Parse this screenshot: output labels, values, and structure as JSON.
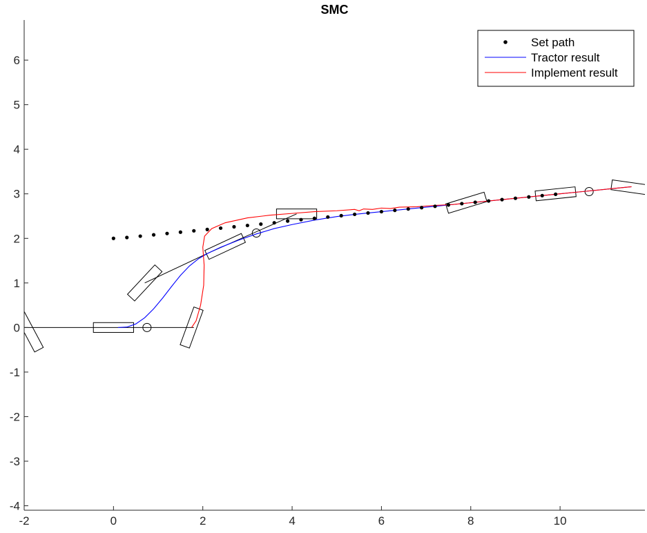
{
  "chart_data": {
    "type": "line",
    "title": "SMC",
    "xlabel": "",
    "ylabel": "",
    "xlim": [
      -2,
      11.9
    ],
    "ylim": [
      -4.1,
      6.9
    ],
    "grid": false,
    "legend_position": "top-right",
    "x_ticks": [
      "-2",
      "0",
      "2",
      "4",
      "6",
      "8",
      "10"
    ],
    "x_tick_values": [
      -2,
      0,
      2,
      4,
      6,
      8,
      10
    ],
    "y_ticks": [
      "-4",
      "-3",
      "-2",
      "-1",
      "0",
      "1",
      "2",
      "3",
      "4",
      "5",
      "6"
    ],
    "y_tick_values": [
      -4,
      -3,
      -2,
      -1,
      0,
      1,
      2,
      3,
      4,
      5,
      6
    ],
    "legend": [
      {
        "label": "Set path",
        "style": "marker",
        "color": "#000000"
      },
      {
        "label": "Tractor result",
        "style": "line",
        "color": "#0000ff"
      },
      {
        "label": "Implement result",
        "style": "line",
        "color": "#ff0000"
      }
    ],
    "series": [
      {
        "name": "Set path",
        "style": "marker",
        "color": "#000000",
        "points": [
          [
            0,
            2
          ],
          [
            0.3,
            2.02
          ],
          [
            0.6,
            2.05
          ],
          [
            0.9,
            2.08
          ],
          [
            1.2,
            2.11
          ],
          [
            1.5,
            2.14
          ],
          [
            1.8,
            2.17
          ],
          [
            2.1,
            2.2
          ],
          [
            2.4,
            2.23
          ],
          [
            2.7,
            2.26
          ],
          [
            3.0,
            2.29
          ],
          [
            3.3,
            2.32
          ],
          [
            3.6,
            2.35
          ],
          [
            3.9,
            2.39
          ],
          [
            4.2,
            2.42
          ],
          [
            4.5,
            2.45
          ],
          [
            4.8,
            2.48
          ],
          [
            5.1,
            2.51
          ],
          [
            5.4,
            2.54
          ],
          [
            5.7,
            2.57
          ],
          [
            6.0,
            2.6
          ],
          [
            6.3,
            2.63
          ],
          [
            6.6,
            2.66
          ],
          [
            6.9,
            2.69
          ],
          [
            7.2,
            2.72
          ],
          [
            7.5,
            2.75
          ],
          [
            7.8,
            2.78
          ],
          [
            8.1,
            2.81
          ],
          [
            8.4,
            2.84
          ],
          [
            8.7,
            2.87
          ],
          [
            9.0,
            2.9
          ],
          [
            9.3,
            2.93
          ],
          [
            9.6,
            2.96
          ],
          [
            9.9,
            2.99
          ]
        ]
      },
      {
        "name": "Tractor result",
        "style": "line",
        "color": "#0000ff",
        "points": [
          [
            0.1,
            0
          ],
          [
            0.3,
            0.01
          ],
          [
            0.5,
            0.08
          ],
          [
            0.7,
            0.22
          ],
          [
            0.9,
            0.42
          ],
          [
            1.1,
            0.66
          ],
          [
            1.3,
            0.92
          ],
          [
            1.5,
            1.17
          ],
          [
            1.7,
            1.38
          ],
          [
            1.9,
            1.54
          ],
          [
            2.1,
            1.66
          ],
          [
            2.4,
            1.8
          ],
          [
            2.8,
            1.96
          ],
          [
            3.2,
            2.1
          ],
          [
            3.6,
            2.22
          ],
          [
            4.0,
            2.31
          ],
          [
            4.5,
            2.41
          ],
          [
            5.0,
            2.49
          ],
          [
            5.5,
            2.55
          ],
          [
            6.0,
            2.6
          ],
          [
            6.5,
            2.65
          ],
          [
            7.0,
            2.7
          ],
          [
            7.5,
            2.75
          ],
          [
            8.0,
            2.8
          ],
          [
            8.5,
            2.85
          ],
          [
            9.0,
            2.9
          ],
          [
            9.5,
            2.95
          ],
          [
            10.0,
            3.0
          ],
          [
            10.5,
            3.05
          ],
          [
            11.0,
            3.1
          ],
          [
            11.6,
            3.16
          ]
        ]
      },
      {
        "name": "Implement result",
        "style": "line",
        "color": "#ff0000",
        "points": [
          [
            1.75,
            0
          ],
          [
            1.85,
            0.15
          ],
          [
            1.95,
            0.5
          ],
          [
            2.02,
            0.95
          ],
          [
            2.03,
            1.4
          ],
          [
            2.0,
            1.8
          ],
          [
            2.04,
            2.05
          ],
          [
            2.2,
            2.22
          ],
          [
            2.5,
            2.35
          ],
          [
            3.0,
            2.46
          ],
          [
            3.5,
            2.52
          ],
          [
            4.0,
            2.56
          ],
          [
            4.5,
            2.6
          ],
          [
            5.0,
            2.62
          ],
          [
            5.4,
            2.65
          ],
          [
            5.5,
            2.62
          ],
          [
            5.6,
            2.66
          ],
          [
            5.8,
            2.65
          ],
          [
            6.0,
            2.68
          ],
          [
            6.2,
            2.67
          ],
          [
            6.4,
            2.7
          ],
          [
            6.8,
            2.71
          ],
          [
            7.2,
            2.74
          ],
          [
            7.6,
            2.76
          ],
          [
            8.0,
            2.8
          ],
          [
            8.5,
            2.85
          ],
          [
            9.0,
            2.9
          ],
          [
            9.5,
            2.95
          ],
          [
            10.0,
            3.0
          ],
          [
            10.5,
            3.05
          ],
          [
            11.0,
            3.1
          ],
          [
            11.6,
            3.16
          ]
        ]
      }
    ],
    "annotations": {
      "lines": [
        {
          "name": "ground-line",
          "color": "#000000",
          "points": [
            [
              -2,
              0
            ],
            [
              1.8,
              0
            ]
          ]
        },
        {
          "name": "hitch-line-1",
          "color": "#000000",
          "points": [
            [
              0.7,
              1.0
            ],
            [
              2.1,
              1.66
            ]
          ]
        },
        {
          "name": "hitch-line-2",
          "color": "#000000",
          "points": [
            [
              2.1,
              1.66
            ],
            [
              4.1,
              2.55
            ]
          ]
        }
      ],
      "boxes": [
        {
          "name": "tractor-box-initial",
          "cx": 0,
          "cy": 0,
          "w": 0.9,
          "h": 0.22,
          "angle": 0
        },
        {
          "name": "implement-box-initial",
          "cx": 1.75,
          "cy": 0,
          "w": 0.9,
          "h": 0.22,
          "angle": 70
        },
        {
          "name": "left-edge-box",
          "cx": -1.88,
          "cy": -0.1,
          "w": 0.9,
          "h": 0.22,
          "angle": -62
        },
        {
          "name": "implement-box-swing",
          "cx": 0.7,
          "cy": 1.0,
          "w": 0.9,
          "h": 0.22,
          "angle": 47
        },
        {
          "name": "tractor-box-climb",
          "cx": 2.5,
          "cy": 1.82,
          "w": 0.9,
          "h": 0.22,
          "angle": 25
        },
        {
          "name": "implement-box-top",
          "cx": 4.1,
          "cy": 2.55,
          "w": 0.9,
          "h": 0.22,
          "angle": 0
        },
        {
          "name": "box-mid",
          "cx": 7.9,
          "cy": 2.8,
          "w": 0.9,
          "h": 0.22,
          "angle": 17
        },
        {
          "name": "box-right",
          "cx": 9.9,
          "cy": 3.0,
          "w": 0.9,
          "h": 0.22,
          "angle": 6
        },
        {
          "name": "box-far-right",
          "cx": 11.6,
          "cy": 3.14,
          "w": 0.9,
          "h": 0.22,
          "angle": -8
        }
      ],
      "circles": [
        {
          "name": "wheel-marker-1",
          "cx": 0.75,
          "cy": 0
        },
        {
          "name": "wheel-marker-2",
          "cx": 3.2,
          "cy": 2.12
        },
        {
          "name": "wheel-marker-3",
          "cx": 10.65,
          "cy": 3.05
        }
      ]
    }
  }
}
